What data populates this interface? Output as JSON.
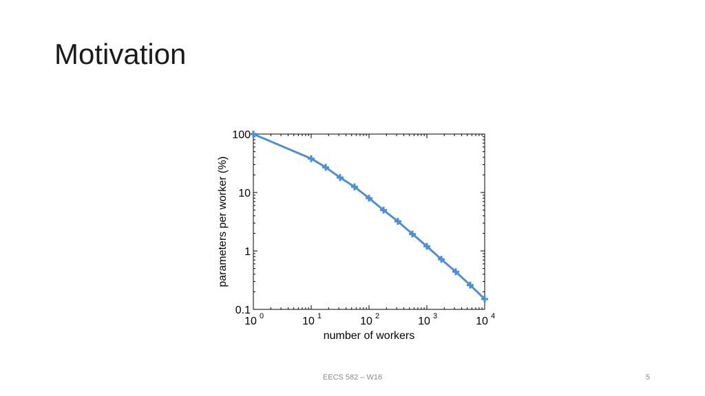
{
  "slide": {
    "title": "Motivation",
    "footer": "EECS 582 – W16",
    "page_number": "5"
  },
  "chart_data": {
    "type": "line",
    "xscale": "log",
    "yscale": "log",
    "xlabel": "number of workers",
    "ylabel": "parameters per worker (%)",
    "xlim": [
      1,
      10000
    ],
    "ylim": [
      0.1,
      100
    ],
    "x_ticks": [
      {
        "base": "10",
        "exp": "0"
      },
      {
        "base": "10",
        "exp": "1"
      },
      {
        "base": "10",
        "exp": "2"
      },
      {
        "base": "10",
        "exp": "3"
      },
      {
        "base": "10",
        "exp": "4"
      }
    ],
    "y_ticks": [
      "100",
      "10",
      "1",
      "0.1"
    ],
    "line_color": "#4a90d9",
    "grid": false,
    "series": [
      {
        "marker": "plus",
        "x": [
          1,
          10,
          17.8,
          31.6,
          56.2,
          100,
          178,
          316,
          562,
          1000,
          1780,
          3160,
          5620,
          10000
        ],
        "y": [
          100,
          38,
          27,
          18,
          12.5,
          8,
          5,
          3.2,
          1.95,
          1.2,
          0.72,
          0.44,
          0.26,
          0.15
        ]
      }
    ]
  }
}
